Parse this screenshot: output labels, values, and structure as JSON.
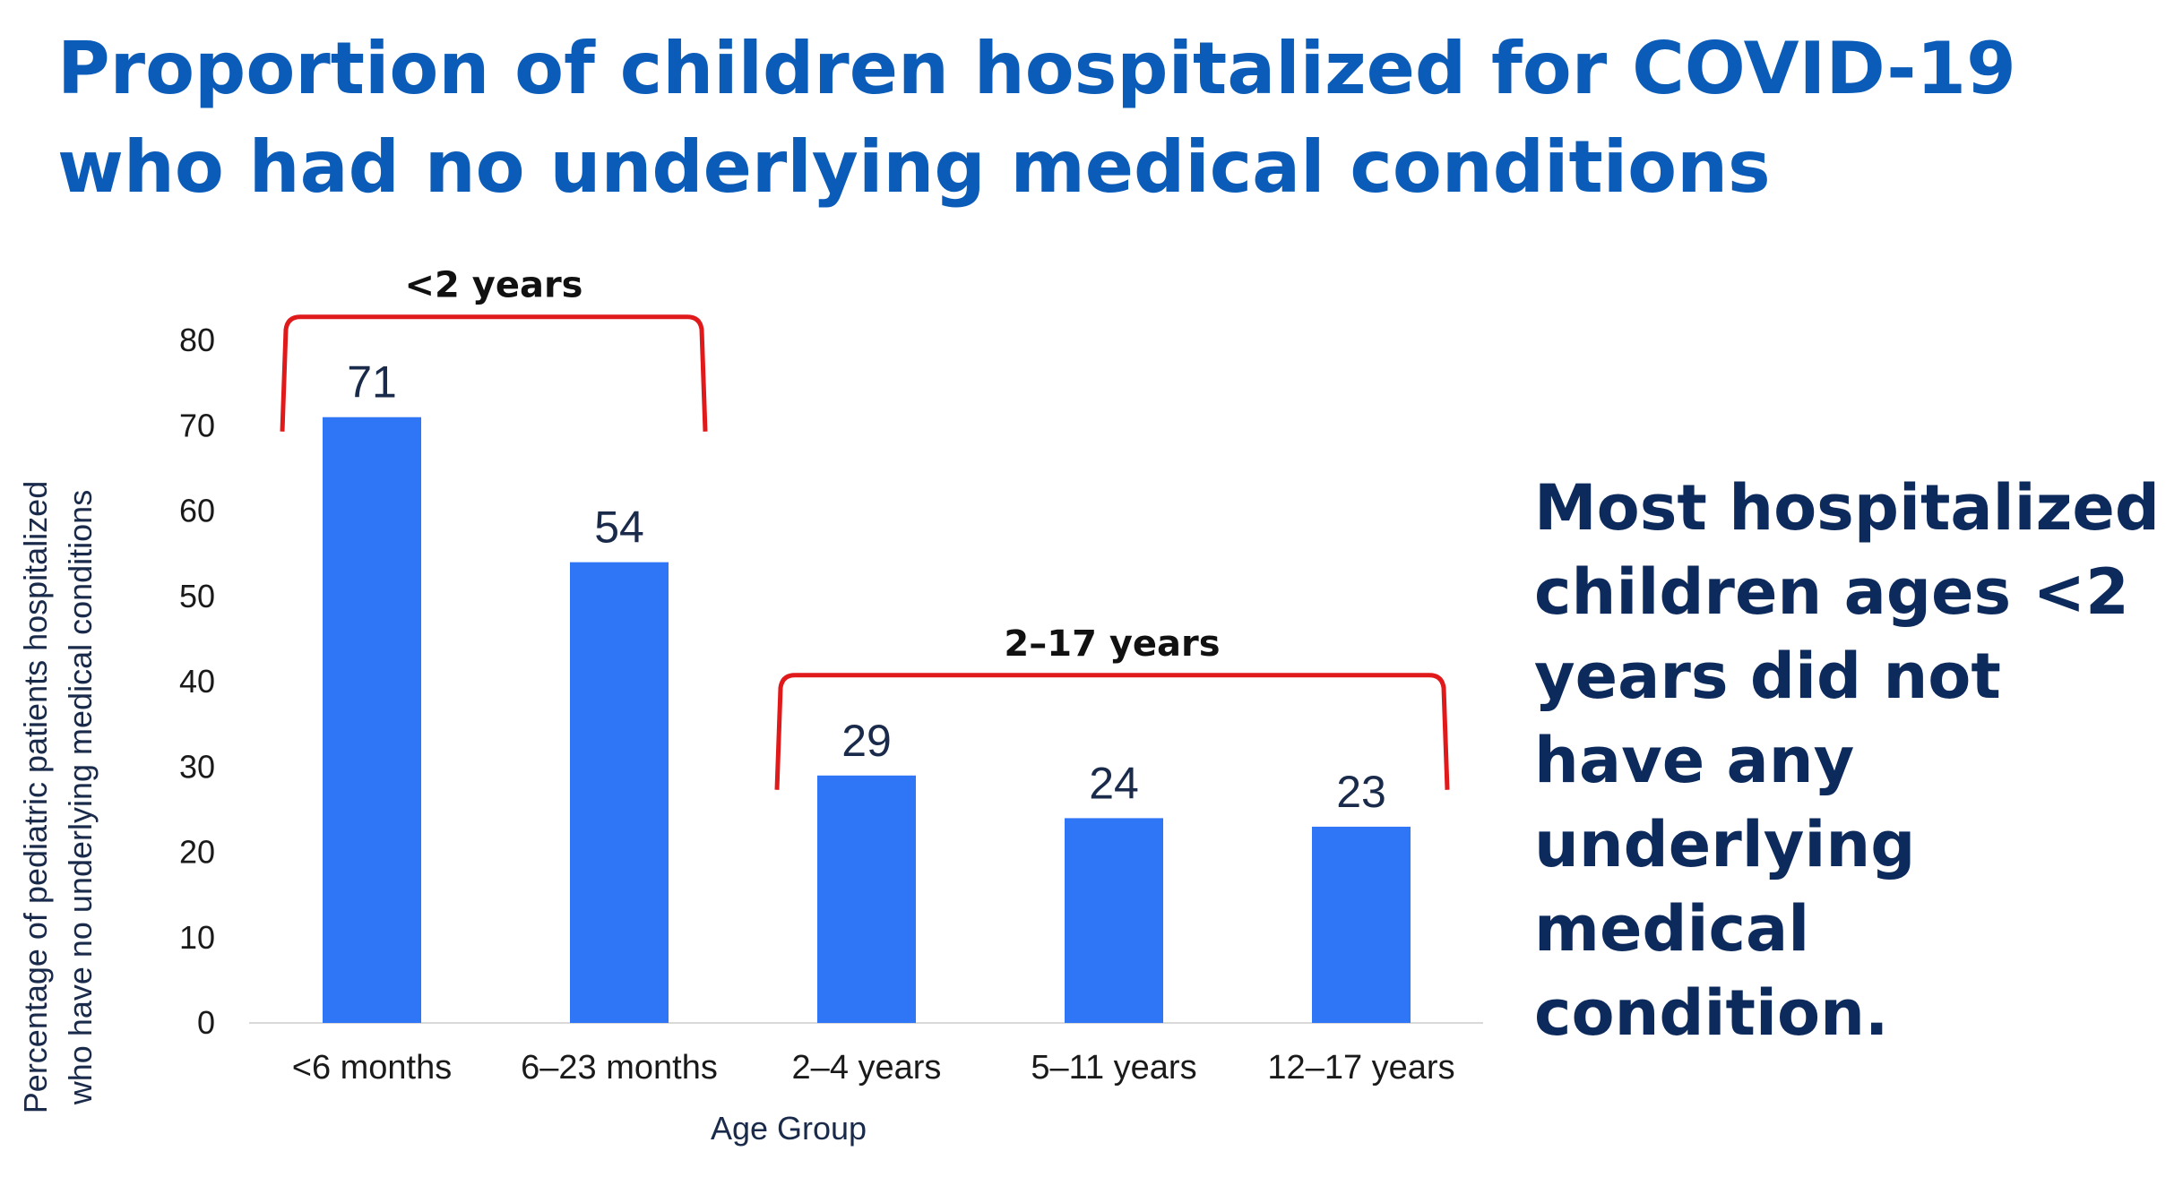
{
  "title": "Proportion of children hospitalized for COVID-19 who had no underlying medical conditions",
  "takeaway": "Most hospitalized children ages <2 years did not have any underlying medical condition.",
  "colors": {
    "title": "#0b5cb8",
    "bar": "#2f76f6",
    "bracket": "#e0191b",
    "takeaway": "#0d2a5c"
  },
  "chart_data": {
    "type": "bar",
    "categories": [
      "<6 months",
      "6–23 months",
      "2–4 years",
      "5–11 years",
      "12–17 years"
    ],
    "values": [
      71,
      54,
      29,
      24,
      23
    ],
    "data_labels": [
      "71",
      "54",
      "29",
      "24",
      "23"
    ],
    "xlabel": "Age Group",
    "ylabel": "Percentage of pediatric patients hospitalized who have no underlying medical conditions",
    "ylabel_lines": [
      "Percentage of pediatric patients hospitalized",
      "who have no underlying medical conditions"
    ],
    "ylim": [
      0,
      80
    ],
    "yticks": [
      0,
      10,
      20,
      30,
      40,
      50,
      60,
      70,
      80
    ],
    "grid": false,
    "groups": [
      {
        "label": "<2 years",
        "start": 0,
        "end": 1
      },
      {
        "label": "2–17 years",
        "start": 2,
        "end": 4
      }
    ]
  }
}
